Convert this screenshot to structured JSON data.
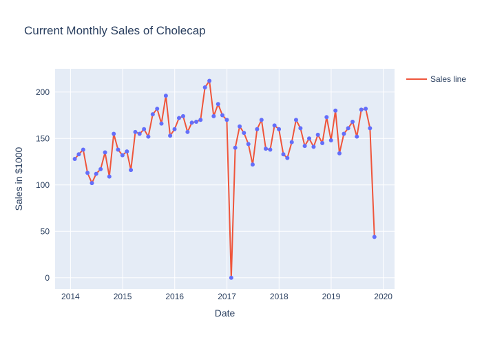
{
  "chart_data": {
    "type": "line",
    "title": "Current Monthly Sales of Cholecap",
    "xlabel": "Date",
    "ylabel": "Sales in $1000",
    "legend_placement": "top-right",
    "grid": true,
    "xlim": [
      "2013-09-15",
      "2020-03-20"
    ],
    "ylim": [
      -12,
      225
    ],
    "x_ticks": [
      "2014",
      "2015",
      "2016",
      "2017",
      "2018",
      "2019",
      "2020"
    ],
    "y_ticks": [
      0,
      50,
      100,
      150,
      200
    ],
    "colors": {
      "plot_bg": "#e5ecf6",
      "grid": "#ffffff",
      "line": "#ef553b",
      "marker": "#636efa",
      "text": "#2a3f5f"
    },
    "series": [
      {
        "name": "Sales line",
        "x": [
          "2014-01-31",
          "2014-02-28",
          "2014-03-31",
          "2014-04-30",
          "2014-05-31",
          "2014-06-30",
          "2014-07-31",
          "2014-08-31",
          "2014-09-30",
          "2014-10-31",
          "2014-11-30",
          "2014-12-31",
          "2015-01-31",
          "2015-02-28",
          "2015-03-31",
          "2015-04-30",
          "2015-05-31",
          "2015-06-30",
          "2015-07-31",
          "2015-08-31",
          "2015-09-30",
          "2015-10-31",
          "2015-11-30",
          "2015-12-31",
          "2016-01-31",
          "2016-02-29",
          "2016-03-31",
          "2016-04-30",
          "2016-05-31",
          "2016-06-30",
          "2016-07-31",
          "2016-08-31",
          "2016-09-30",
          "2016-10-31",
          "2016-11-30",
          "2016-12-31",
          "2017-01-31",
          "2017-02-28",
          "2017-03-31",
          "2017-04-30",
          "2017-05-31",
          "2017-06-30",
          "2017-07-31",
          "2017-08-31",
          "2017-09-30",
          "2017-10-31",
          "2017-11-30",
          "2017-12-31",
          "2018-01-31",
          "2018-02-28",
          "2018-03-31",
          "2018-04-30",
          "2018-05-31",
          "2018-06-30",
          "2018-07-31",
          "2018-08-31",
          "2018-09-30",
          "2018-10-31",
          "2018-11-30",
          "2018-12-31",
          "2019-01-31",
          "2019-02-28",
          "2019-03-31",
          "2019-04-30",
          "2019-05-31",
          "2019-06-30",
          "2019-07-31",
          "2019-08-31",
          "2019-09-30",
          "2019-10-31"
        ],
        "values": [
          128,
          133,
          138,
          113,
          102,
          112,
          117,
          135,
          109,
          155,
          138,
          132,
          136,
          116,
          157,
          155,
          160,
          152,
          176,
          182,
          166,
          196,
          153,
          160,
          172,
          174,
          157,
          167,
          168,
          170,
          205,
          212,
          174,
          187,
          175,
          170,
          0,
          140,
          163,
          156,
          144,
          122,
          160,
          170,
          139,
          138,
          164,
          160,
          133,
          129,
          146,
          170,
          161,
          142,
          150,
          141,
          154,
          145,
          173,
          148,
          180,
          134,
          155,
          161,
          168,
          152,
          181,
          182,
          161,
          44
        ]
      }
    ]
  }
}
